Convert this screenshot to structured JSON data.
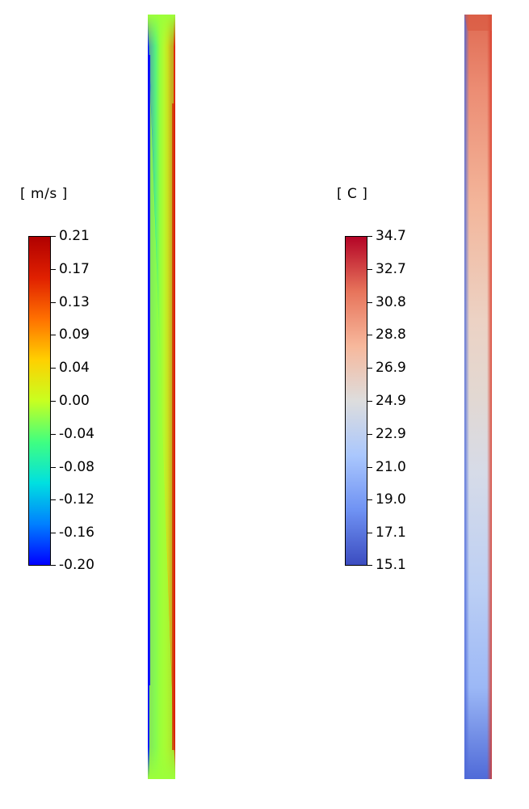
{
  "legends": {
    "velocity": {
      "unit": "[ m/s ]",
      "labels": [
        "0.21",
        "0.17",
        "0.13",
        "0.09",
        "0.04",
        "0.00",
        "-0.04",
        "-0.08",
        "-0.12",
        "-0.16",
        "-0.20"
      ],
      "colormap": [
        "#0000ff",
        "#0080ff",
        "#00e0e0",
        "#40ff80",
        "#c8ff20",
        "#ffd000",
        "#ff7000",
        "#e02000",
        "#b00000"
      ]
    },
    "temperature": {
      "unit": "[ C ]",
      "labels": [
        "34.7",
        "32.7",
        "30.8",
        "28.8",
        "26.9",
        "24.9",
        "22.9",
        "21.0",
        "19.0",
        "17.1",
        "15.1"
      ],
      "colormap": [
        "#3b4cc0",
        "#6f92f3",
        "#aac7fd",
        "#dddddd",
        "#f7b89c",
        "#e7745b",
        "#b40426"
      ]
    }
  },
  "fields": {
    "velocity": {
      "cold_wall_color": "#0000ff",
      "core_color": "#9cff3a",
      "hot_wall_color": "#d82000"
    },
    "temperature": {
      "cold_wall_color": "#3b4cc0",
      "core_color": "#e2d8d2",
      "hot_wall_color": "#d83a2a"
    }
  }
}
